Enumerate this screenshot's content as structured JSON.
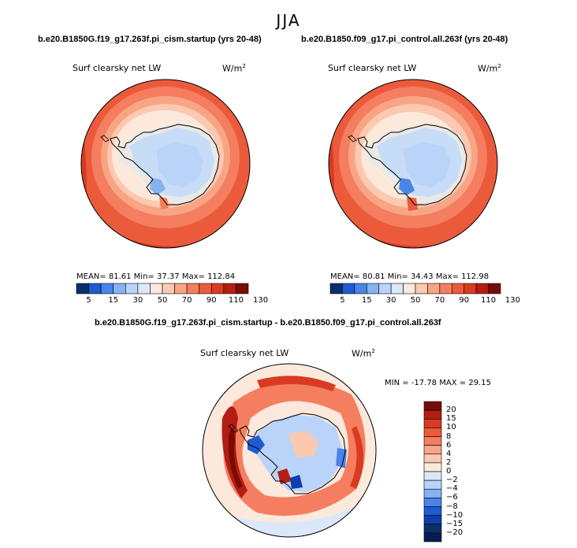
{
  "figure": {
    "season": "JJA",
    "case_a": "b.e20.B1850G.f19_g17.263f.pi_cism.startup (yrs 20-48)",
    "case_b": "b.e20.B1850.f09_g17.pi_control.all.263f (yrs 20-48)",
    "diff_title": "b.e20.B1850G.f19_g17.263f.pi_cism.startup - b.e20.B1850.f09_g17.pi_control.all.263f"
  },
  "chart_data": [
    {
      "type": "heatmap",
      "projection": "south-polar-stereographic",
      "title": "Surf clearsky net LW",
      "units_base": "W/m",
      "units_exp": "2",
      "mean_label": "MEAN=",
      "mean": "81.61",
      "min_label": "Min=",
      "min": "37.37",
      "max_label": "Max=",
      "max": "112.84",
      "colorbar_ticks": [
        "5",
        "15",
        "30",
        "50",
        "70",
        "90",
        "110",
        "130"
      ],
      "colors": [
        "#08306b",
        "#1f5bd1",
        "#4a84e8",
        "#86b2f0",
        "#b9d4f8",
        "#dbe8fb",
        "#fde9dc",
        "#fbc9b0",
        "#f8a585",
        "#f47e5f",
        "#ec5a3c",
        "#d93a22",
        "#b21e12",
        "#7a0c06"
      ],
      "palette": {
        "land": "#c7dcf7",
        "coast_ice": "#e9e9e6",
        "ocean_near": "#fde9dc",
        "ocean_mid": "#f8a585",
        "ocean_far": "#ec5a3c"
      }
    },
    {
      "type": "heatmap",
      "projection": "south-polar-stereographic",
      "title": "Surf clearsky net LW",
      "units_base": "W/m",
      "units_exp": "2",
      "mean_label": "MEAN=",
      "mean": "80.81",
      "min_label": "Min=",
      "min": "34.43",
      "max_label": "Max=",
      "max": "112.98",
      "colorbar_ticks": [
        "5",
        "15",
        "30",
        "50",
        "70",
        "90",
        "110",
        "130"
      ],
      "colors": [
        "#08306b",
        "#1f5bd1",
        "#4a84e8",
        "#86b2f0",
        "#b9d4f8",
        "#dbe8fb",
        "#fde9dc",
        "#fbc9b0",
        "#f8a585",
        "#f47e5f",
        "#ec5a3c",
        "#d93a22",
        "#b21e12",
        "#7a0c06"
      ],
      "palette": {
        "land": "#c7dcf7",
        "coast_ice": "#e9e9e6",
        "ocean_near": "#fde9dc",
        "ocean_mid": "#f8a585",
        "ocean_far": "#ec5a3c"
      }
    },
    {
      "type": "heatmap",
      "projection": "south-polar-stereographic",
      "title": "Surf clearsky net LW",
      "units_base": "W/m",
      "units_exp": "2",
      "min_label": "MIN =",
      "min": "-17.78",
      "max_label": "MAX =",
      "max": "29.15",
      "colorbar_ticks": [
        "20",
        "15",
        "10",
        "8",
        "6",
        "4",
        "2",
        "0",
        "−2",
        "−4",
        "−6",
        "−8",
        "−10",
        "−15",
        "−20"
      ],
      "colors": [
        "#7a0c06",
        "#b21e12",
        "#d93a22",
        "#ec5a3c",
        "#f47e5f",
        "#f8a585",
        "#fbc9b0",
        "#fde9dc",
        "#dbe8fb",
        "#b9d4f8",
        "#86b2f0",
        "#4a84e8",
        "#1f5bd1",
        "#0c3fb0",
        "#08306b",
        "#031e52"
      ],
      "palette": {
        "land": "#dbe8fb",
        "coast_ice": "#fde9dc",
        "ocean_near": "#fde9dc",
        "ocean_mid": "#f47e5f",
        "ocean_far": "#fde9dc"
      }
    }
  ]
}
